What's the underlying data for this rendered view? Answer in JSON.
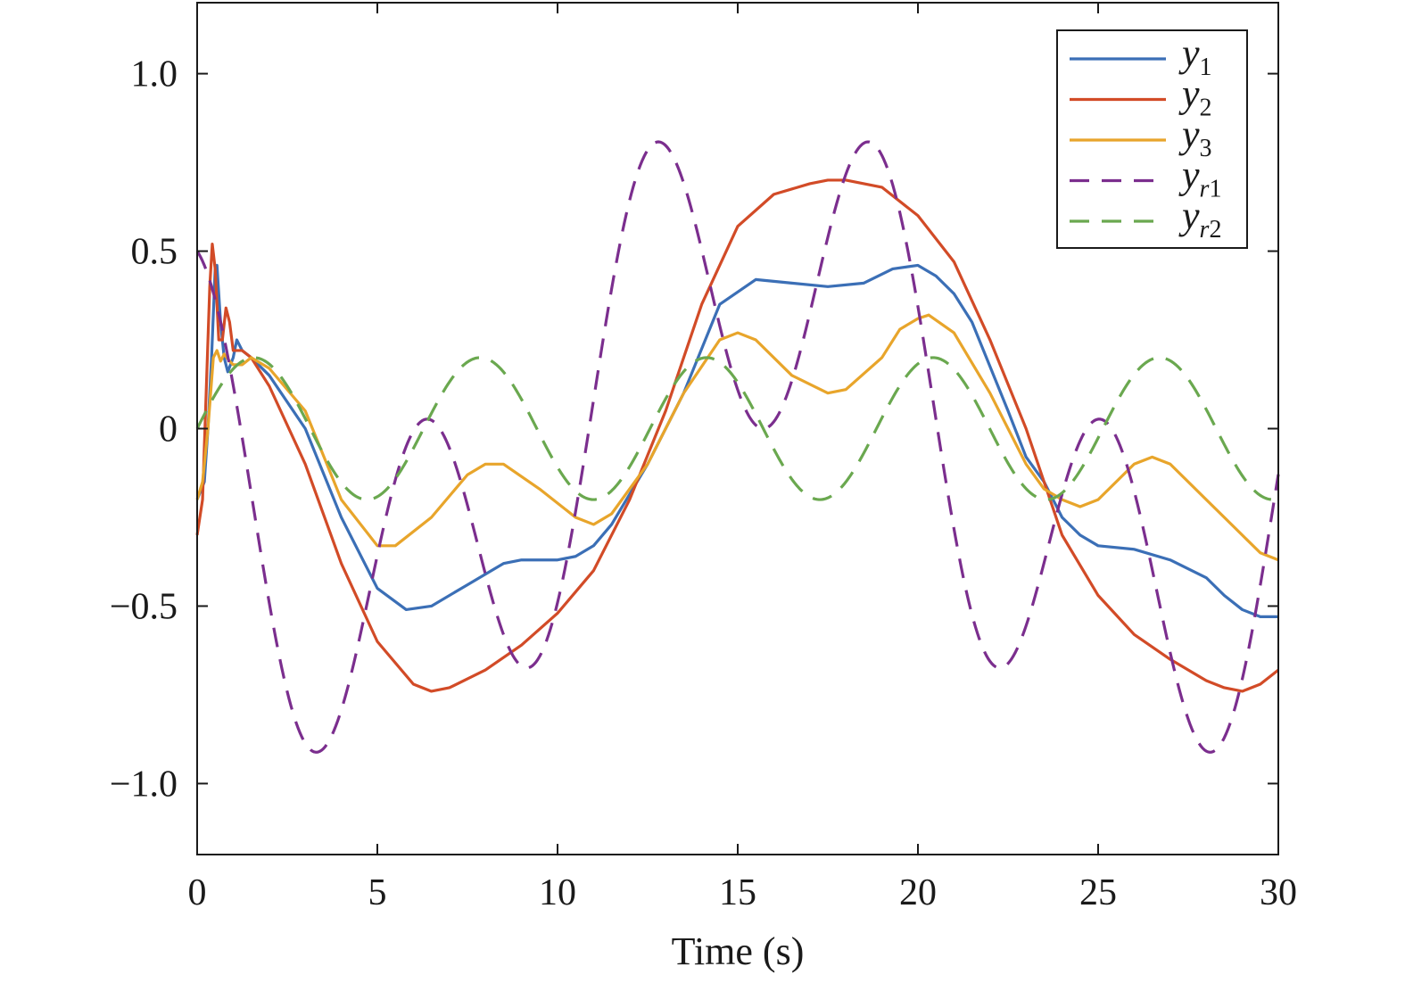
{
  "chart_data": {
    "type": "line",
    "title": "",
    "xlabel": "Time (s)",
    "ylabel": "",
    "xlim": [
      0,
      30
    ],
    "ylim": [
      -1.2,
      1.2
    ],
    "x_ticks": [
      0,
      5,
      10,
      15,
      20,
      25,
      30
    ],
    "x_tick_labels": [
      "0",
      "5",
      "10",
      "15",
      "20",
      "25",
      "30"
    ],
    "y_ticks": [
      1.0,
      0.5,
      0,
      -0.5,
      -1.0
    ],
    "y_tick_labels": [
      "1.0",
      "0.5",
      "0",
      "−0.5",
      "−1.0"
    ],
    "grid": false,
    "legend_position": "top-right",
    "series": [
      {
        "name": "y1",
        "legend_base": "y",
        "legend_sub": "1",
        "color": "#3b6fb6",
        "dash": "solid",
        "points": [
          [
            0,
            -0.2
          ],
          [
            0.2,
            -0.15
          ],
          [
            0.3,
            0.0
          ],
          [
            0.4,
            0.2
          ],
          [
            0.5,
            0.45
          ],
          [
            0.55,
            0.46
          ],
          [
            0.65,
            0.3
          ],
          [
            0.75,
            0.2
          ],
          [
            0.85,
            0.16
          ],
          [
            1.0,
            0.2
          ],
          [
            1.1,
            0.25
          ],
          [
            1.25,
            0.22
          ],
          [
            1.5,
            0.2
          ],
          [
            2.0,
            0.15
          ],
          [
            3.0,
            0.0
          ],
          [
            4.0,
            -0.25
          ],
          [
            5.0,
            -0.45
          ],
          [
            5.8,
            -0.51
          ],
          [
            6.5,
            -0.5
          ],
          [
            7.5,
            -0.44
          ],
          [
            8.5,
            -0.38
          ],
          [
            9.0,
            -0.37
          ],
          [
            10.0,
            -0.37
          ],
          [
            10.5,
            -0.36
          ],
          [
            11.0,
            -0.33
          ],
          [
            11.5,
            -0.27
          ],
          [
            12.5,
            -0.1
          ],
          [
            13.5,
            0.1
          ],
          [
            14.5,
            0.35
          ],
          [
            15.5,
            0.42
          ],
          [
            16.5,
            0.41
          ],
          [
            17.5,
            0.4
          ],
          [
            18.5,
            0.41
          ],
          [
            19.3,
            0.45
          ],
          [
            20.0,
            0.46
          ],
          [
            20.5,
            0.43
          ],
          [
            21.0,
            0.38
          ],
          [
            21.5,
            0.3
          ],
          [
            22.5,
            0.05
          ],
          [
            23.0,
            -0.08
          ],
          [
            23.5,
            -0.15
          ],
          [
            24.0,
            -0.25
          ],
          [
            24.5,
            -0.3
          ],
          [
            25.0,
            -0.33
          ],
          [
            26.0,
            -0.34
          ],
          [
            27.0,
            -0.37
          ],
          [
            28.0,
            -0.42
          ],
          [
            28.5,
            -0.47
          ],
          [
            29.0,
            -0.51
          ],
          [
            29.5,
            -0.53
          ],
          [
            30.0,
            -0.53
          ]
        ]
      },
      {
        "name": "y2",
        "legend_base": "y",
        "legend_sub": "2",
        "color": "#d24b27",
        "dash": "solid",
        "points": [
          [
            0,
            -0.3
          ],
          [
            0.15,
            -0.2
          ],
          [
            0.25,
            0.1
          ],
          [
            0.35,
            0.4
          ],
          [
            0.42,
            0.52
          ],
          [
            0.5,
            0.45
          ],
          [
            0.6,
            0.25
          ],
          [
            0.7,
            0.25
          ],
          [
            0.8,
            0.34
          ],
          [
            0.9,
            0.3
          ],
          [
            1.0,
            0.22
          ],
          [
            1.25,
            0.22
          ],
          [
            1.5,
            0.2
          ],
          [
            2.0,
            0.12
          ],
          [
            3.0,
            -0.1
          ],
          [
            4.0,
            -0.38
          ],
          [
            5.0,
            -0.6
          ],
          [
            6.0,
            -0.72
          ],
          [
            6.5,
            -0.74
          ],
          [
            7.0,
            -0.73
          ],
          [
            8.0,
            -0.68
          ],
          [
            9.0,
            -0.61
          ],
          [
            10.0,
            -0.52
          ],
          [
            11.0,
            -0.4
          ],
          [
            12.0,
            -0.2
          ],
          [
            13.0,
            0.05
          ],
          [
            14.0,
            0.35
          ],
          [
            15.0,
            0.57
          ],
          [
            16.0,
            0.66
          ],
          [
            17.0,
            0.69
          ],
          [
            17.5,
            0.7
          ],
          [
            18.0,
            0.7
          ],
          [
            19.0,
            0.68
          ],
          [
            20.0,
            0.6
          ],
          [
            21.0,
            0.47
          ],
          [
            22.0,
            0.25
          ],
          [
            23.0,
            0.0
          ],
          [
            24.0,
            -0.3
          ],
          [
            25.0,
            -0.47
          ],
          [
            26.0,
            -0.58
          ],
          [
            27.0,
            -0.65
          ],
          [
            28.0,
            -0.71
          ],
          [
            28.5,
            -0.73
          ],
          [
            29.0,
            -0.74
          ],
          [
            29.5,
            -0.72
          ],
          [
            30.0,
            -0.68
          ]
        ]
      },
      {
        "name": "y3",
        "legend_base": "y",
        "legend_sub": "3",
        "color": "#e8a52b",
        "dash": "solid",
        "points": [
          [
            0,
            -0.2
          ],
          [
            0.15,
            -0.15
          ],
          [
            0.3,
            0.0
          ],
          [
            0.45,
            0.2
          ],
          [
            0.55,
            0.22
          ],
          [
            0.65,
            0.19
          ],
          [
            0.75,
            0.21
          ],
          [
            0.9,
            0.19
          ],
          [
            1.0,
            0.18
          ],
          [
            1.25,
            0.18
          ],
          [
            1.5,
            0.2
          ],
          [
            2.0,
            0.17
          ],
          [
            3.0,
            0.05
          ],
          [
            4.0,
            -0.2
          ],
          [
            5.0,
            -0.33
          ],
          [
            5.5,
            -0.33
          ],
          [
            6.5,
            -0.25
          ],
          [
            7.5,
            -0.13
          ],
          [
            8.0,
            -0.1
          ],
          [
            8.5,
            -0.1
          ],
          [
            9.5,
            -0.17
          ],
          [
            10.5,
            -0.25
          ],
          [
            11.0,
            -0.27
          ],
          [
            11.5,
            -0.24
          ],
          [
            12.5,
            -0.1
          ],
          [
            13.5,
            0.1
          ],
          [
            14.5,
            0.25
          ],
          [
            15.0,
            0.27
          ],
          [
            15.5,
            0.25
          ],
          [
            16.5,
            0.15
          ],
          [
            17.5,
            0.1
          ],
          [
            18.0,
            0.11
          ],
          [
            19.0,
            0.2
          ],
          [
            19.5,
            0.28
          ],
          [
            20.0,
            0.31
          ],
          [
            20.3,
            0.32
          ],
          [
            21.0,
            0.27
          ],
          [
            22.0,
            0.1
          ],
          [
            23.0,
            -0.1
          ],
          [
            23.5,
            -0.17
          ],
          [
            24.0,
            -0.2
          ],
          [
            24.5,
            -0.22
          ],
          [
            25.0,
            -0.2
          ],
          [
            26.0,
            -0.1
          ],
          [
            26.5,
            -0.08
          ],
          [
            27.0,
            -0.1
          ],
          [
            28.0,
            -0.2
          ],
          [
            29.0,
            -0.3
          ],
          [
            29.5,
            -0.35
          ],
          [
            30.0,
            -0.37
          ]
        ]
      },
      {
        "name": "yr1",
        "legend_base": "y",
        "legend_sub": "r",
        "legend_sub2": "1",
        "color": "#7b2e8e",
        "dash": "dashed",
        "function": "0.5*cos(t) - 0.5*sin(0.3*t)",
        "points": []
      },
      {
        "name": "yr2",
        "legend_base": "y",
        "legend_sub": "r",
        "legend_sub2": "2",
        "color": "#6aa84f",
        "dash": "dashed",
        "function": "0.2*sin(t)",
        "points": []
      }
    ]
  }
}
